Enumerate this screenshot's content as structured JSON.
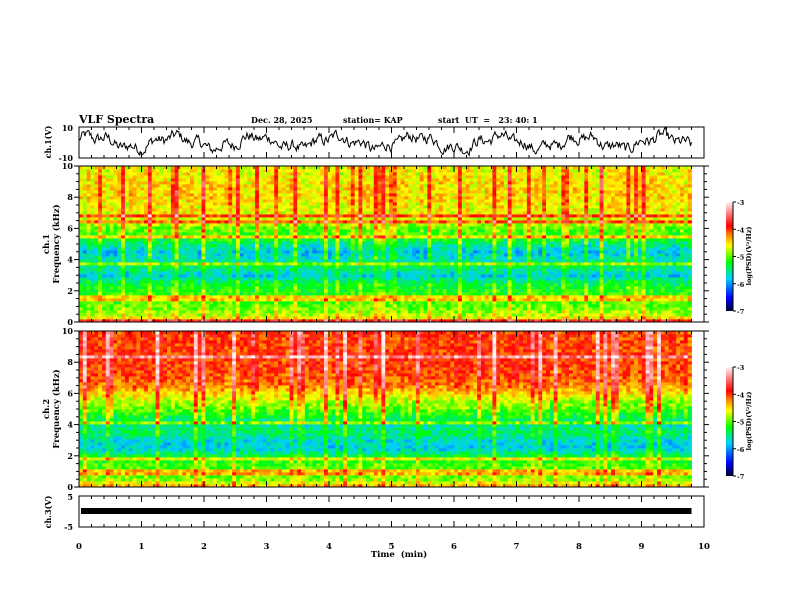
{
  "header": {
    "title": "VLF Spectra",
    "date": "Dec. 28, 2025",
    "station": "station= KAP",
    "start_time": "start  UT  =   23: 40: 1"
  },
  "chart_data": [
    {
      "type": "line",
      "id": "ch1-waveform",
      "ylabel": "ch.1(V)",
      "ylim": [
        -10,
        10
      ],
      "yticks": [
        "10",
        "-10"
      ],
      "xlim": [
        0,
        10
      ],
      "description_series": "noisy voltage waveform oscillating roughly between -8 and 8 V",
      "end_time_min": 9.8
    },
    {
      "type": "heatmap",
      "id": "ch1-spectrogram",
      "ylabel_line1": "ch.1",
      "ylabel_line2": "Frequency  (kHz)",
      "ylim": [
        0,
        10
      ],
      "yticks": [
        "0",
        "2",
        "4",
        "6",
        "8",
        "10"
      ],
      "xlim": [
        0,
        10
      ],
      "end_time_min": 9.8,
      "profile_freq_khz": [
        0,
        0.5,
        1,
        1.5,
        2,
        2.5,
        3,
        3.5,
        4,
        4.5,
        5,
        5.5,
        6,
        6.5,
        7,
        7.5,
        8,
        8.5,
        9,
        9.5,
        10
      ],
      "profile_log_psd": [
        -4.3,
        -4.8,
        -5.0,
        -5.1,
        -5.2,
        -5.3,
        -5.8,
        -5.4,
        -5.6,
        -5.8,
        -5.5,
        -5.1,
        -5.0,
        -4.7,
        -4.6,
        -4.6,
        -4.5,
        -4.5,
        -4.5,
        -4.6,
        -4.6
      ],
      "colorbar": {
        "label": "log(PSD)(V²/Hz)",
        "range": [
          -7,
          -3
        ],
        "ticks": [
          "-3",
          "-4",
          "-5",
          "-6",
          "-7"
        ]
      }
    },
    {
      "type": "heatmap",
      "id": "ch2-spectrogram",
      "ylabel_line1": "ch.2",
      "ylabel_line2": "Frequency  (kHz)",
      "ylim": [
        0,
        10
      ],
      "yticks": [
        "0",
        "2",
        "4",
        "6",
        "8",
        "10"
      ],
      "xlim": [
        0,
        10
      ],
      "end_time_min": 9.8,
      "profile_freq_khz": [
        0,
        0.5,
        1,
        1.5,
        2,
        2.5,
        3,
        3.5,
        4,
        4.5,
        5,
        5.5,
        6,
        6.5,
        7,
        7.5,
        8,
        8.5,
        9,
        9.5,
        10
      ],
      "profile_log_psd": [
        -4.3,
        -4.9,
        -5.0,
        -5.1,
        -5.3,
        -5.8,
        -5.7,
        -5.4,
        -5.6,
        -5.3,
        -5.0,
        -4.8,
        -4.5,
        -4.2,
        -4.1,
        -4.0,
        -4.0,
        -4.0,
        -4.0,
        -4.0,
        -4.0
      ],
      "colorbar": {
        "label": "log(PSD)(V²/Hz)",
        "range": [
          -7,
          -3
        ],
        "ticks": [
          "-3",
          "-4",
          "-5",
          "-6",
          "-7"
        ]
      }
    },
    {
      "type": "line",
      "id": "ch3-waveform",
      "ylabel": "ch.3(V)",
      "ylim": [
        -5,
        5
      ],
      "yticks": [
        "5",
        "-5"
      ],
      "xlim": [
        0,
        10
      ],
      "constant_value": 0,
      "end_time_min": 9.8
    }
  ],
  "xaxis": {
    "label": "Time  (min)",
    "ticks": [
      "0",
      "1",
      "2",
      "3",
      "4",
      "5",
      "6",
      "7",
      "8",
      "9",
      "10"
    ]
  },
  "colors": {
    "colormap": [
      "#000040",
      "#0000ff",
      "#00ffff",
      "#00ff00",
      "#ffff00",
      "#ff8000",
      "#ff0000",
      "#ffd0d0"
    ]
  }
}
